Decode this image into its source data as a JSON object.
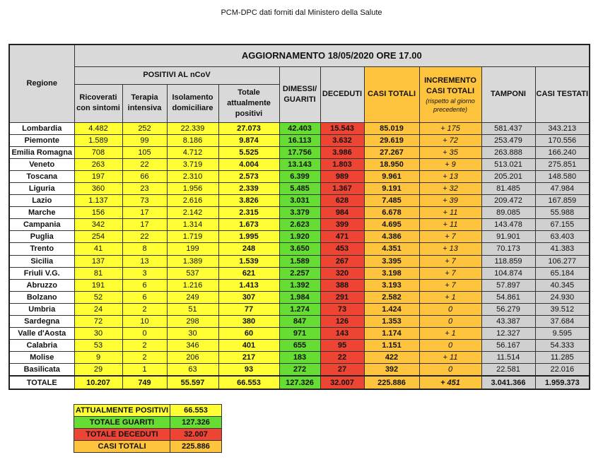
{
  "title": "PCM-DPC dati forniti dal Ministero della Salute",
  "headers": {
    "regione": "Regione",
    "update": "AGGIORNAMENTO 18/05/2020 ORE 17.00",
    "positivi": "POSITIVI AL nCoV",
    "ricoverati": "Ricoverati con sintomi",
    "terapia": "Terapia intensiva",
    "isolamento": "Isolamento domiciliare",
    "totale_pos": "Totale attualmente positivi",
    "dimessi": "DIMESSI/ GUARITI",
    "deceduti": "DECEDUTI",
    "casi_totali": "CASI TOTALI",
    "incremento": "INCREMENTO CASI TOTALI",
    "incremento_sub": "(rispetto al giorno precedente)",
    "tamponi": "TAMPONI",
    "casi_testati": "CASI TESTATI"
  },
  "rows": [
    [
      "Lombardia",
      "4.482",
      "252",
      "22.339",
      "27.073",
      "42.403",
      "15.543",
      "85.019",
      "+ 175",
      "581.437",
      "343.213"
    ],
    [
      "Piemonte",
      "1.589",
      "99",
      "8.186",
      "9.874",
      "16.113",
      "3.632",
      "29.619",
      "+ 72",
      "253.479",
      "170.556"
    ],
    [
      "Emilia Romagna",
      "708",
      "105",
      "4.712",
      "5.525",
      "17.756",
      "3.986",
      "27.267",
      "+ 35",
      "263.888",
      "166.240"
    ],
    [
      "Veneto",
      "263",
      "22",
      "3.719",
      "4.004",
      "13.143",
      "1.803",
      "18.950",
      "+ 9",
      "513.021",
      "275.851"
    ],
    [
      "Toscana",
      "197",
      "66",
      "2.310",
      "2.573",
      "6.399",
      "989",
      "9.961",
      "+ 13",
      "205.201",
      "148.580"
    ],
    [
      "Liguria",
      "360",
      "23",
      "1.956",
      "2.339",
      "5.485",
      "1.367",
      "9.191",
      "+ 32",
      "81.485",
      "47.984"
    ],
    [
      "Lazio",
      "1.137",
      "73",
      "2.616",
      "3.826",
      "3.031",
      "628",
      "7.485",
      "+ 39",
      "209.472",
      "167.859"
    ],
    [
      "Marche",
      "156",
      "17",
      "2.142",
      "2.315",
      "3.379",
      "984",
      "6.678",
      "+ 11",
      "89.085",
      "55.988"
    ],
    [
      "Campania",
      "342",
      "17",
      "1.314",
      "1.673",
      "2.623",
      "399",
      "4.695",
      "+ 11",
      "143.478",
      "67.155"
    ],
    [
      "Puglia",
      "254",
      "22",
      "1.719",
      "1.995",
      "1.920",
      "471",
      "4.386",
      "+ 7",
      "91.901",
      "63.403"
    ],
    [
      "Trento",
      "41",
      "8",
      "199",
      "248",
      "3.650",
      "453",
      "4.351",
      "+ 13",
      "70.173",
      "41.383"
    ],
    [
      "Sicilia",
      "137",
      "13",
      "1.389",
      "1.539",
      "1.589",
      "267",
      "3.395",
      "+ 7",
      "118.859",
      "106.277"
    ],
    [
      "Friuli V.G.",
      "81",
      "3",
      "537",
      "621",
      "2.257",
      "320",
      "3.198",
      "+ 7",
      "104.874",
      "65.184"
    ],
    [
      "Abruzzo",
      "191",
      "6",
      "1.216",
      "1.413",
      "1.392",
      "388",
      "3.193",
      "+ 7",
      "57.897",
      "40.345"
    ],
    [
      "Bolzano",
      "52",
      "6",
      "249",
      "307",
      "1.984",
      "291",
      "2.582",
      "+ 1",
      "54.861",
      "24.930"
    ],
    [
      "Umbria",
      "24",
      "2",
      "51",
      "77",
      "1.274",
      "73",
      "1.424",
      "0",
      "56.279",
      "39.512"
    ],
    [
      "Sardegna",
      "72",
      "10",
      "298",
      "380",
      "847",
      "126",
      "1.353",
      "0",
      "43.387",
      "37.684"
    ],
    [
      "Valle d'Aosta",
      "30",
      "0",
      "30",
      "60",
      "971",
      "143",
      "1.174",
      "+ 1",
      "12.327",
      "9.595"
    ],
    [
      "Calabria",
      "53",
      "2",
      "346",
      "401",
      "655",
      "95",
      "1.151",
      "0",
      "56.167",
      "54.333"
    ],
    [
      "Molise",
      "9",
      "2",
      "206",
      "217",
      "183",
      "22",
      "422",
      "+ 11",
      "11.514",
      "11.285"
    ],
    [
      "Basilicata",
      "29",
      "1",
      "63",
      "93",
      "272",
      "27",
      "392",
      "0",
      "22.581",
      "22.016"
    ]
  ],
  "total": [
    "TOTALE",
    "10.207",
    "749",
    "55.597",
    "66.553",
    "127.326",
    "32.007",
    "225.886",
    "+ 451",
    "3.041.366",
    "1.959.373"
  ],
  "summary": [
    {
      "label": "ATTUALMENTE POSITIVI",
      "value": "66.553",
      "color": "#ffff33"
    },
    {
      "label": "TOTALE GUARITI",
      "value": "127.326",
      "color": "#66dd33"
    },
    {
      "label": "TOTALE DECEDUTI",
      "value": "32.007",
      "color": "#ee4433"
    },
    {
      "label": "CASI TOTALI",
      "value": "225.886",
      "color": "#ffc43d"
    }
  ]
}
